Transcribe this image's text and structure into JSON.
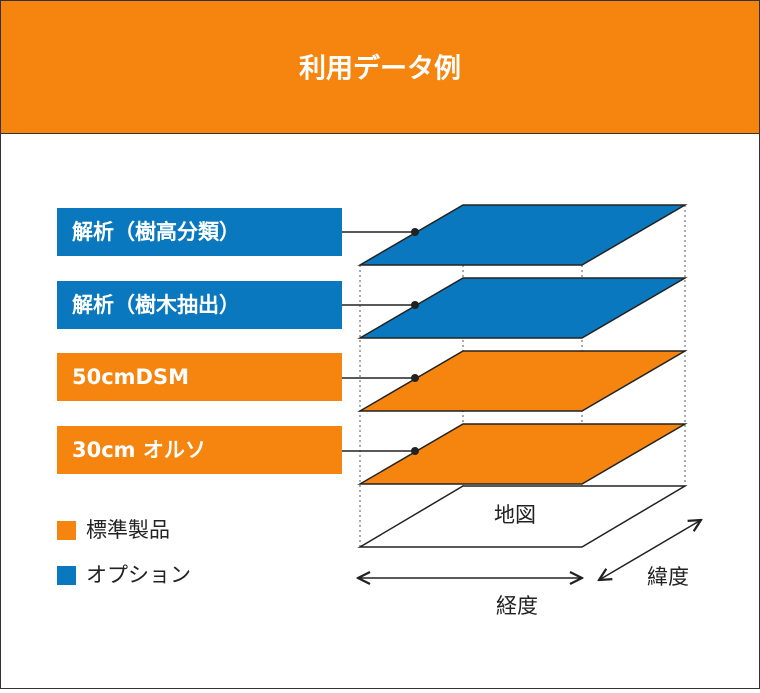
{
  "header": {
    "title": "利用データ例"
  },
  "layers": [
    {
      "label": "解析（樹高分類）"
    },
    {
      "label": "解析（樹木抽出）"
    },
    {
      "label": "50cmDSM"
    },
    {
      "label": "30cm オルソ"
    }
  ],
  "map": {
    "label": "地図"
  },
  "axes": {
    "longitude": "経度",
    "latitude": "緯度"
  },
  "legend": [
    {
      "label": "標準製品"
    },
    {
      "label": "オプション"
    }
  ]
}
